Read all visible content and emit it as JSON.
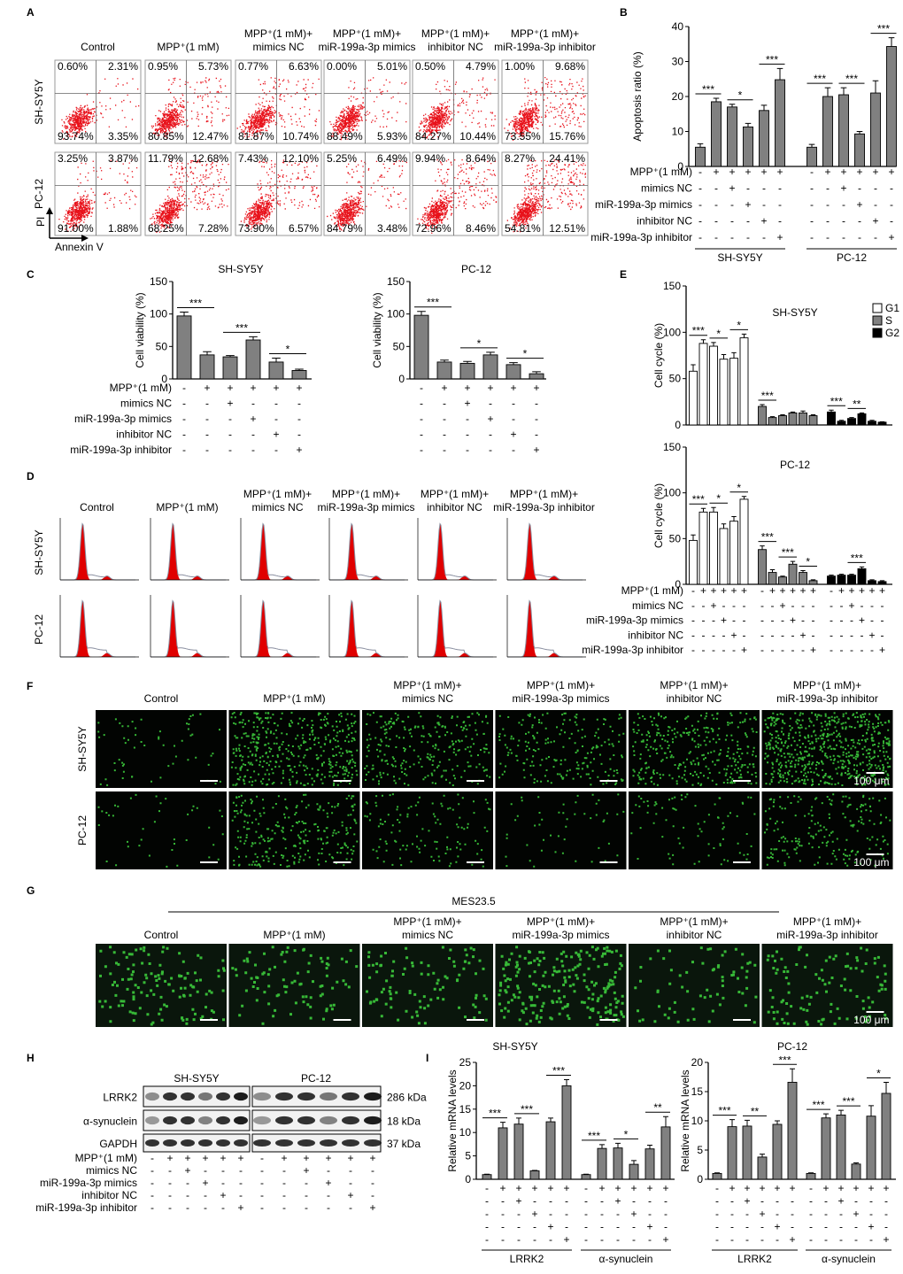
{
  "panel_labels": [
    "A",
    "B",
    "C",
    "D",
    "E",
    "F",
    "G",
    "H",
    "I"
  ],
  "cell_lines": [
    "SH-SY5Y",
    "PC-12"
  ],
  "conditions": [
    [
      "Control"
    ],
    [
      "MPP⁺(1 mM)"
    ],
    [
      "MPP⁺(1 mM)+",
      "mimics NC"
    ],
    [
      "MPP⁺(1 mM)+",
      "miR-199a-3p mimics"
    ],
    [
      "MPP⁺(1 mM)+",
      "inhibitor NC"
    ],
    [
      "MPP⁺(1 mM)+",
      "miR-199a-3p inhibitor"
    ]
  ],
  "treatments": {
    "labels": [
      "MPP⁺(1 mM)",
      "mimics NC",
      "miR-199a-3p mimics",
      "inhibitor NC",
      "miR-199a-3p inhibitor"
    ],
    "signs": [
      [
        "-",
        "+",
        "+",
        "+",
        "+",
        "+"
      ],
      [
        "-",
        "-",
        "+",
        "-",
        "-",
        "-"
      ],
      [
        "-",
        "-",
        "-",
        "+",
        "-",
        "-"
      ],
      [
        "-",
        "-",
        "-",
        "-",
        "+",
        "-"
      ],
      [
        "-",
        "-",
        "-",
        "-",
        "-",
        "+"
      ]
    ]
  },
  "flow_cytometry": {
    "y_label": "PI",
    "x_label": "Annexin V",
    "quadrants": [
      [
        [
          "0.60%",
          "2.31%",
          "93.74%",
          "3.35%"
        ],
        [
          "0.95%",
          "5.73%",
          "80.85%",
          "12.47%"
        ],
        [
          "0.77%",
          "6.63%",
          "81.87%",
          "10.74%"
        ],
        [
          "0.00%",
          "5.01%",
          "88.49%",
          "5.93%"
        ],
        [
          "0.50%",
          "4.79%",
          "84.27%",
          "10.44%"
        ],
        [
          "1.00%",
          "9.68%",
          "73.55%",
          "15.76%"
        ]
      ],
      [
        [
          "3.25%",
          "3.87%",
          "91.00%",
          "1.88%"
        ],
        [
          "11.79%",
          "12.68%",
          "68.25%",
          "7.28%"
        ],
        [
          "7.43%",
          "12.10%",
          "73.90%",
          "6.57%"
        ],
        [
          "5.25%",
          "6.49%",
          "84.79%",
          "3.48%"
        ],
        [
          "9.94%",
          "8.64%",
          "72.96%",
          "8.46%"
        ],
        [
          "8.27%",
          "24.41%",
          "54.81%",
          "12.51%"
        ]
      ]
    ]
  },
  "fluorescence": {
    "scale_bar": "100 μm",
    "cell_line": "MES23.5"
  },
  "western_blot": {
    "proteins": [
      "LRRK2",
      "α-synuclein",
      "GAPDH"
    ],
    "sizes": [
      "286 kDa",
      "18 kDa",
      "37 kDa"
    ]
  },
  "chart_data": [
    {
      "type": "bar",
      "y_label": "Apoptosis ratio (%)",
      "ylim": [
        0,
        40
      ],
      "yticks": [
        0,
        10,
        20,
        30,
        40
      ],
      "color": "#808080",
      "groups": [
        {
          "name": "SH-SY5Y",
          "values": [
            5.5,
            18.5,
            17,
            11.3,
            16,
            24.8
          ],
          "errors": [
            1,
            1,
            0.8,
            1,
            1.5,
            3.2
          ],
          "significance": [
            null,
            "***",
            null,
            "*",
            null,
            "***"
          ]
        },
        {
          "name": "PC-12",
          "values": [
            5.5,
            20,
            20.5,
            9.3,
            21,
            34.3
          ],
          "errors": [
            0.8,
            2.5,
            2,
            0.7,
            3.5,
            2.5
          ],
          "significance": [
            null,
            "***",
            null,
            "***",
            null,
            "***"
          ]
        }
      ]
    },
    {
      "type": "bar",
      "title": "SH-SY5Y",
      "y_label": "Cell viability (%)",
      "ylim": [
        0,
        150
      ],
      "yticks": [
        0,
        50,
        100,
        150
      ],
      "color": "#808080",
      "values": [
        97,
        37,
        34,
        60,
        26,
        13
      ],
      "errors": [
        6,
        5,
        2,
        5,
        6,
        2
      ],
      "significance": [
        null,
        "***",
        null,
        "***",
        null,
        "*"
      ]
    },
    {
      "type": "bar",
      "title": "PC-12",
      "y_label": "Cell viability (%)",
      "ylim": [
        0,
        150
      ],
      "yticks": [
        0,
        50,
        100,
        150
      ],
      "color": "#808080",
      "values": [
        98,
        26,
        24,
        37,
        22,
        8
      ],
      "errors": [
        6,
        3,
        3,
        4,
        3,
        3
      ],
      "significance": [
        null,
        "***",
        null,
        "*",
        null,
        "*"
      ]
    },
    {
      "type": "bar",
      "title": "SH-SY5Y",
      "y_label": "Cell cycle (%)",
      "ylim": [
        0,
        150
      ],
      "yticks": [
        0,
        50,
        100,
        150
      ],
      "series": [
        {
          "name": "G1",
          "color": "#ffffff",
          "values": [
            58,
            88,
            85,
            71,
            72,
            94
          ],
          "errors": [
            7,
            4,
            4,
            5,
            6,
            4
          ],
          "significance": [
            null,
            "***",
            null,
            "*",
            null,
            "*"
          ]
        },
        {
          "name": "S",
          "color": "#808080",
          "values": [
            20,
            8,
            10,
            13,
            13,
            10
          ],
          "errors": [
            2,
            1,
            1,
            1,
            2,
            1
          ],
          "significance": [
            null,
            "***",
            null,
            null,
            null,
            null
          ]
        },
        {
          "name": "G2",
          "color": "#000000",
          "values": [
            14,
            4,
            7,
            12,
            4,
            3
          ],
          "errors": [
            2,
            1,
            1,
            1,
            1,
            0.5
          ],
          "significance": [
            null,
            "***",
            null,
            "**",
            null,
            null
          ]
        }
      ]
    },
    {
      "type": "bar",
      "title": "PC-12",
      "y_label": "Cell cycle (%)",
      "ylim": [
        0,
        150
      ],
      "yticks": [
        0,
        50,
        100,
        150
      ],
      "series": [
        {
          "color": "#ffffff",
          "values": [
            48,
            79,
            79,
            61,
            69,
            93
          ],
          "errors": [
            6,
            4,
            5,
            5,
            5,
            3
          ],
          "significance": [
            null,
            "***",
            null,
            "*",
            null,
            "*"
          ]
        },
        {
          "color": "#808080",
          "values": [
            38,
            13,
            8,
            22,
            13,
            4
          ],
          "errors": [
            4,
            3,
            1,
            3,
            2,
            1
          ],
          "significance": [
            null,
            "***",
            null,
            "***",
            null,
            "*"
          ]
        },
        {
          "color": "#000000",
          "values": [
            9,
            10,
            10,
            17,
            4,
            3
          ],
          "errors": [
            1,
            1,
            1,
            2,
            1,
            1
          ],
          "significance": [
            null,
            null,
            null,
            "***",
            null,
            null
          ]
        }
      ]
    },
    {
      "type": "bar",
      "title": "SH-SY5Y",
      "y_label": "Relative mRNA levels",
      "ylim": [
        0,
        25
      ],
      "yticks": [
        0,
        5,
        10,
        15,
        20,
        25
      ],
      "color": "#808080",
      "groups": [
        {
          "name": "LRRK2",
          "values": [
            1,
            11,
            11.8,
            1.8,
            12.3,
            20
          ],
          "errors": [
            0.1,
            1.2,
            1.3,
            0.1,
            0.8,
            1.3
          ],
          "significance": [
            null,
            "***",
            null,
            "***",
            null,
            "***"
          ]
        },
        {
          "name": "α-synuclein",
          "values": [
            1,
            6.6,
            6.7,
            3.2,
            6.5,
            11.2
          ],
          "errors": [
            0.1,
            0.8,
            1,
            0.8,
            0.8,
            2.2
          ],
          "significance": [
            null,
            "***",
            null,
            "*",
            null,
            "**"
          ]
        }
      ]
    },
    {
      "type": "bar",
      "title": "PC-12",
      "y_label": "Relative mRNA levels",
      "ylim": [
        0,
        20
      ],
      "yticks": [
        0,
        5,
        10,
        15,
        20
      ],
      "color": "#808080",
      "groups": [
        {
          "name": "LRRK2",
          "values": [
            1,
            9,
            9.1,
            3.8,
            9.4,
            16.6
          ],
          "errors": [
            0.1,
            1.2,
            1,
            0.5,
            0.6,
            2.3
          ],
          "significance": [
            null,
            "***",
            null,
            "**",
            null,
            "***"
          ]
        },
        {
          "name": "α-synuclein",
          "values": [
            1,
            10.5,
            11,
            2.6,
            10.8,
            14.7
          ],
          "errors": [
            0.1,
            0.7,
            0.8,
            0.2,
            1.8,
            1.9
          ],
          "significance": [
            null,
            "***",
            null,
            "***",
            null,
            "*"
          ]
        }
      ]
    }
  ]
}
